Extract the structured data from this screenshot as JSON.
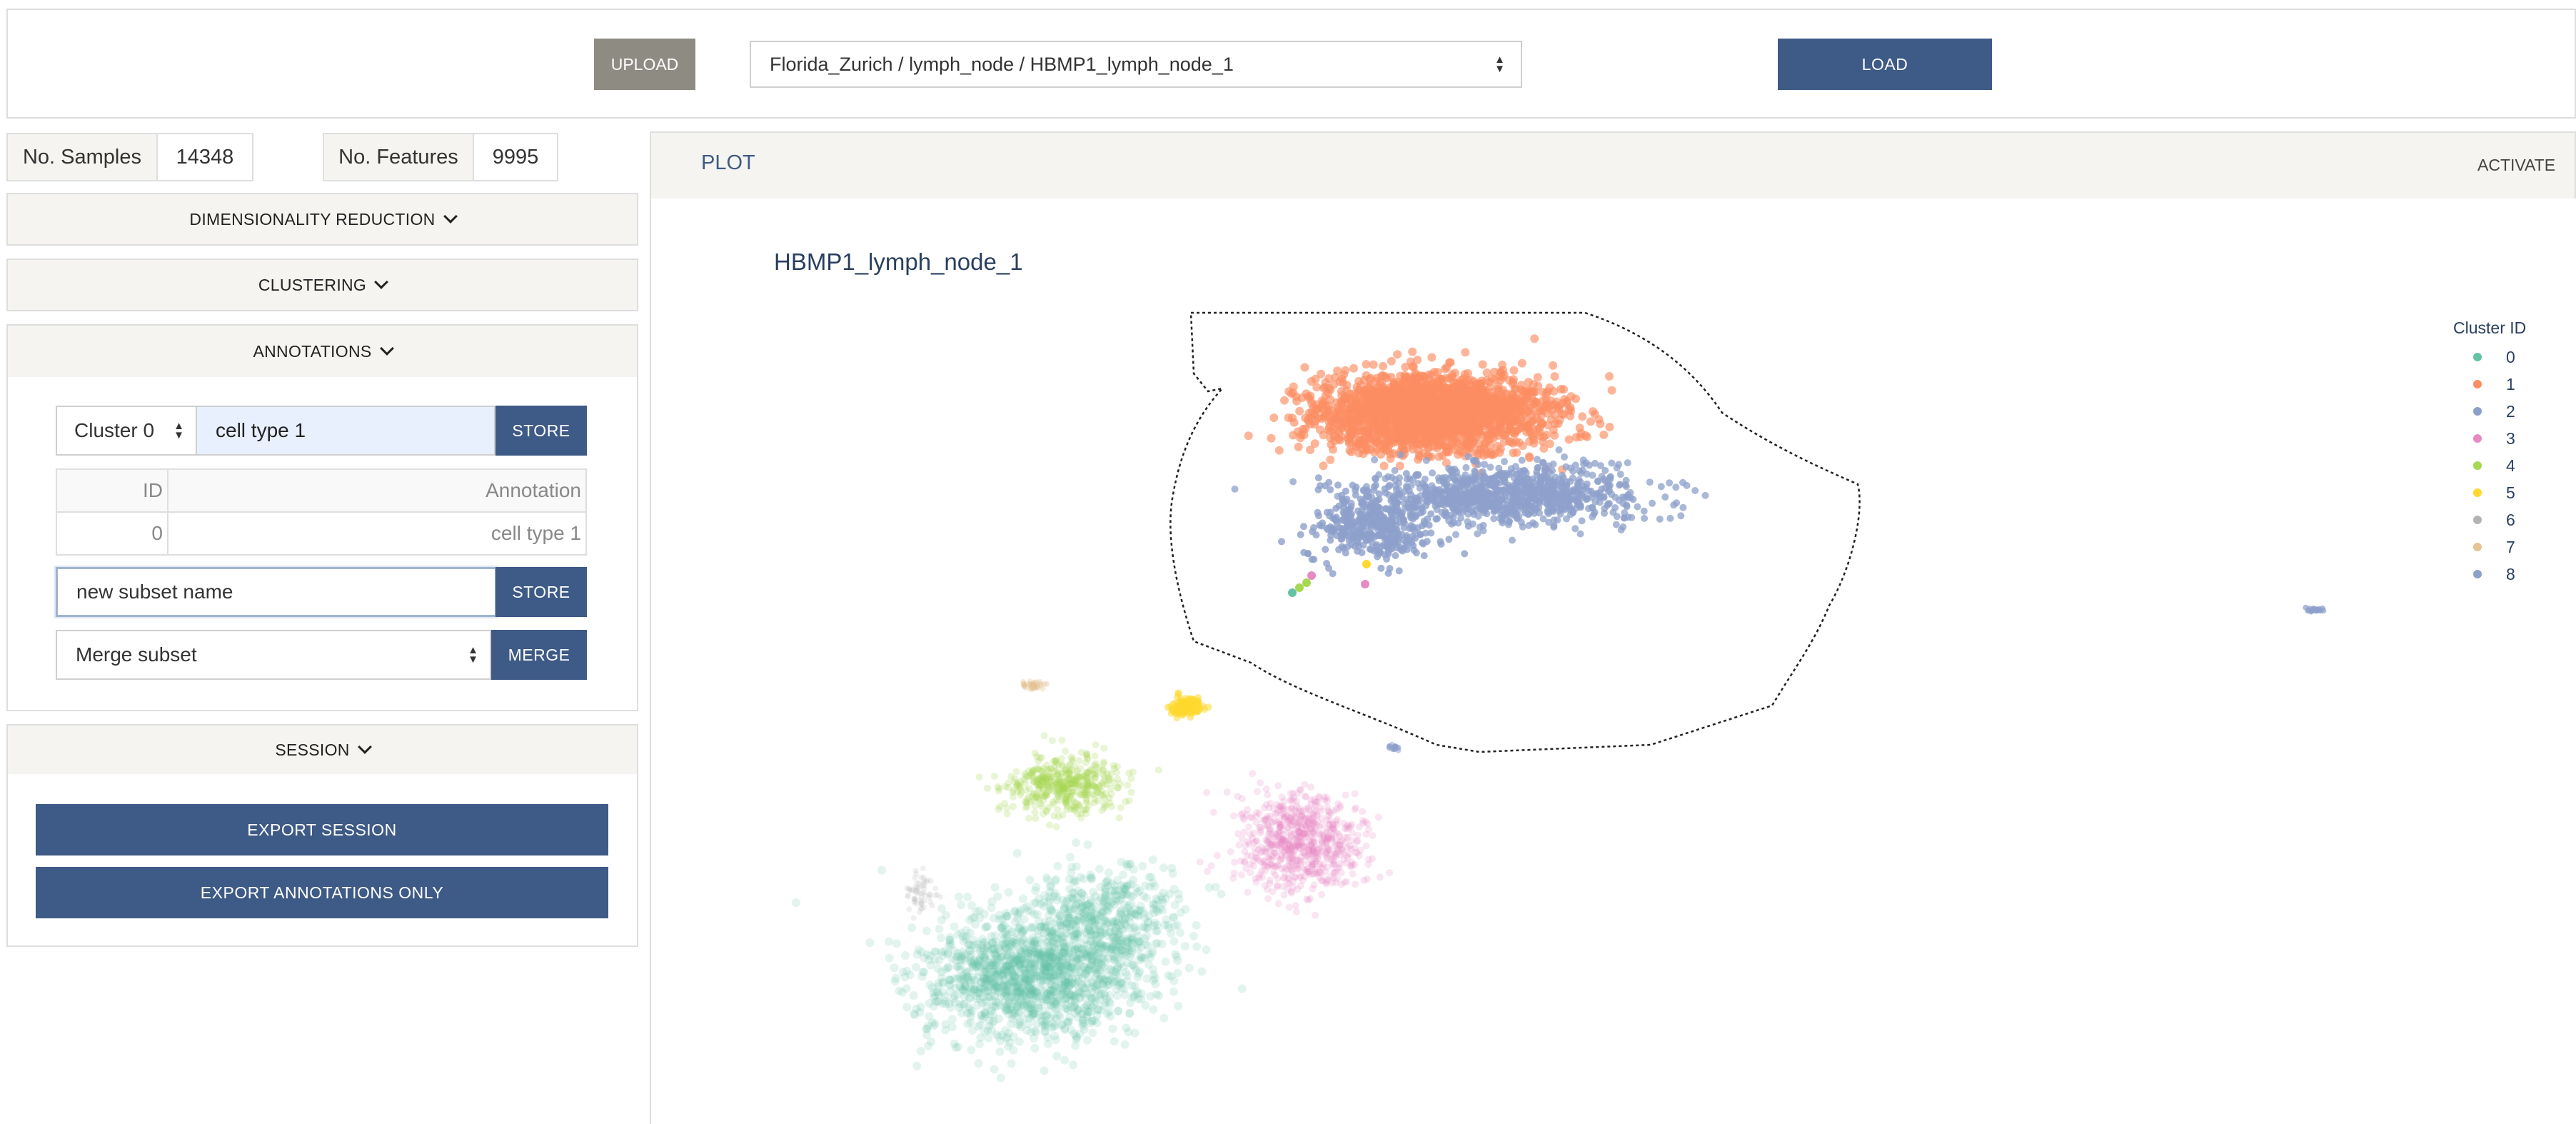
{
  "toolbar": {
    "upload_label": "UPLOAD",
    "dataset_value": "Florida_Zurich / lymph_node / HBMP1_lymph_node_1",
    "load_label": "LOAD"
  },
  "stats": {
    "samples_label": "No. Samples",
    "samples_value": "14348",
    "features_label": "No. Features",
    "features_value": "9995"
  },
  "sections": {
    "dim_reduction": "DIMENSIONALITY REDUCTION",
    "clustering": "CLUSTERING",
    "annotations": "ANNOTATIONS",
    "session": "SESSION"
  },
  "annotations": {
    "cluster_select_value": "Cluster 0",
    "annotation_input_value": "cell type 1",
    "store_label": "STORE",
    "table_headers": [
      "ID",
      "Annotation"
    ],
    "table_rows": [
      {
        "id": "0",
        "annotation": "cell type 1"
      }
    ],
    "subset_input_value": "new subset name",
    "subset_store_label": "STORE",
    "merge_select_value": "Merge subset",
    "merge_label": "MERGE"
  },
  "session": {
    "export_session_label": "EXPORT SESSION",
    "export_annotations_label": "EXPORT ANNOTATIONS ONLY"
  },
  "plot": {
    "header_label": "PLOT",
    "activate_label": "ACTIVATE"
  },
  "chart_data": {
    "type": "scatter",
    "title": "HBMP1_lymph_node_1",
    "legend_title": "Cluster ID",
    "legend_position": "top-right",
    "grid": false,
    "categories": [
      "0",
      "1",
      "2",
      "3",
      "4",
      "5",
      "6",
      "7",
      "8"
    ],
    "colors": {
      "0": "#66c2a5",
      "1": "#fc8d62",
      "2": "#8da0cb",
      "3": "#e78ac3",
      "4": "#a6d854",
      "5": "#ffd92f",
      "6": "#b3b3b3",
      "7": "#e5c494",
      "8": "#8da0cb"
    },
    "selection": "lasso"
  }
}
